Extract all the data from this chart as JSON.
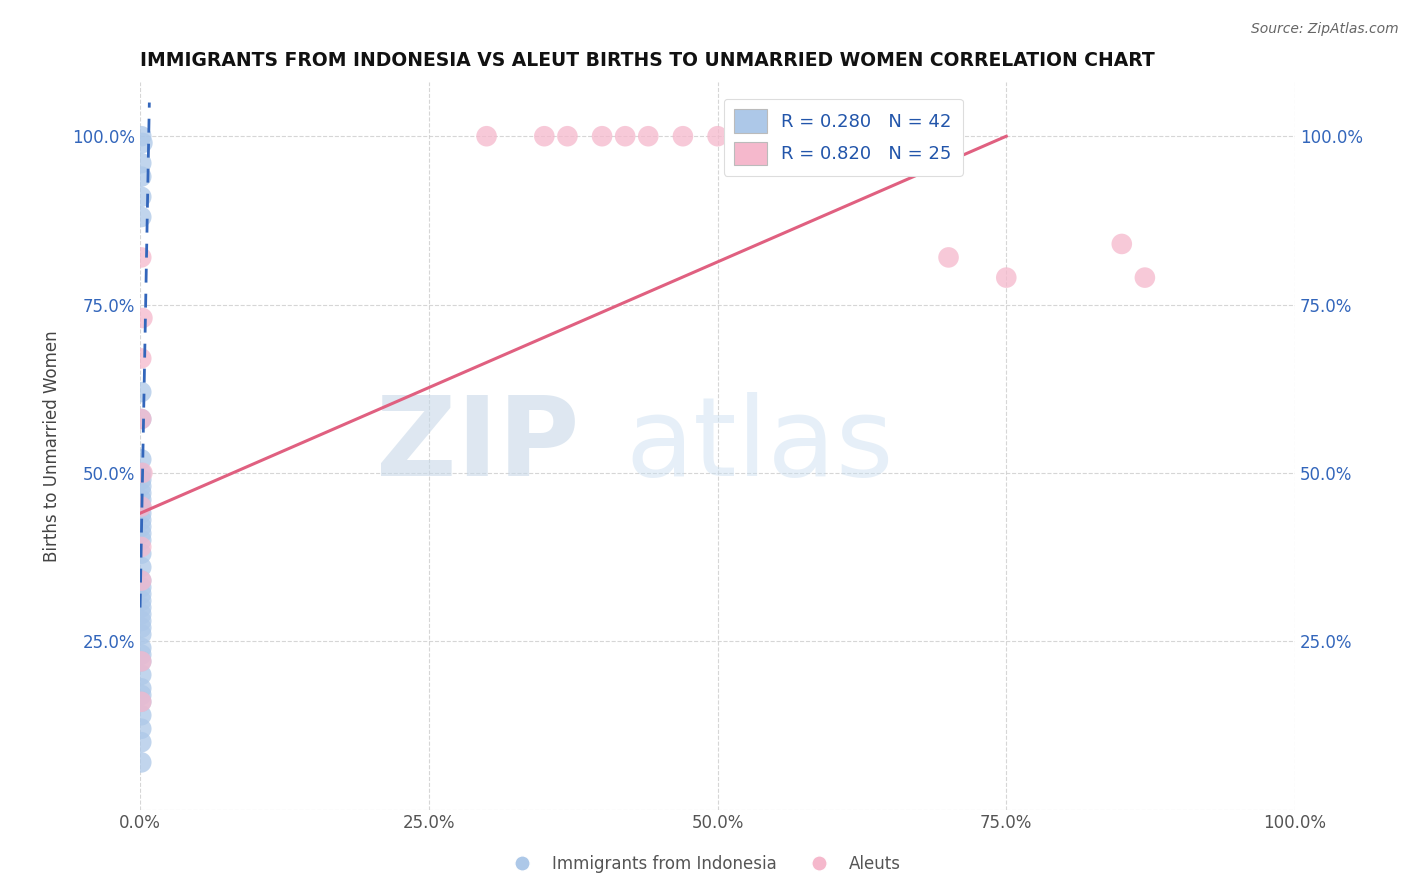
{
  "title": "IMMIGRANTS FROM INDONESIA VS ALEUT BIRTHS TO UNMARRIED WOMEN CORRELATION CHART",
  "source": "Source: ZipAtlas.com",
  "xlabel_bottom": "Immigrants from Indonesia",
  "ylabel": "Births to Unmarried Women",
  "blue_label": "Immigrants from Indonesia",
  "pink_label": "Aleuts",
  "blue_R": 0.28,
  "blue_N": 42,
  "pink_R": 0.82,
  "pink_N": 25,
  "blue_color": "#adc8e8",
  "blue_line_color": "#3366bb",
  "pink_color": "#f5b8cc",
  "pink_line_color": "#e06080",
  "xlim": [
    0.0,
    1.0
  ],
  "ylim": [
    0.0,
    1.08
  ],
  "xticks": [
    0.0,
    0.25,
    0.5,
    0.75,
    1.0
  ],
  "xtick_labels": [
    "0.0%",
    "25.0%",
    "50.0%",
    "75.0%",
    "100.0%"
  ],
  "yticks": [
    0.0,
    0.25,
    0.5,
    0.75,
    1.0
  ],
  "ytick_labels": [
    "",
    "25.0%",
    "50.0%",
    "75.0%",
    "100.0%"
  ],
  "blue_x": [
    0.001,
    0.002,
    0.001,
    0.001,
    0.001,
    0.001,
    0.001,
    0.001,
    0.001,
    0.001,
    0.001,
    0.001,
    0.001,
    0.001,
    0.001,
    0.001,
    0.001,
    0.001,
    0.001,
    0.001,
    0.001,
    0.001,
    0.001,
    0.001,
    0.001,
    0.001,
    0.001,
    0.001,
    0.001,
    0.001,
    0.001,
    0.001,
    0.001,
    0.001,
    0.001,
    0.001,
    0.001,
    0.001,
    0.001,
    0.001,
    0.001,
    0.001
  ],
  "blue_y": [
    1.0,
    0.99,
    0.96,
    0.94,
    0.91,
    0.88,
    0.62,
    0.58,
    0.52,
    0.5,
    0.49,
    0.48,
    0.47,
    0.46,
    0.45,
    0.44,
    0.43,
    0.42,
    0.41,
    0.4,
    0.38,
    0.36,
    0.34,
    0.33,
    0.32,
    0.31,
    0.3,
    0.29,
    0.28,
    0.27,
    0.26,
    0.24,
    0.23,
    0.22,
    0.2,
    0.18,
    0.17,
    0.16,
    0.14,
    0.12,
    0.1,
    0.07
  ],
  "pink_x": [
    0.001,
    0.002,
    0.001,
    0.001,
    0.002,
    0.001,
    0.001,
    0.001,
    0.001,
    0.001,
    0.3,
    0.35,
    0.37,
    0.4,
    0.42,
    0.44,
    0.47,
    0.5,
    0.55,
    0.6,
    0.65,
    0.7,
    0.75,
    0.85,
    0.87
  ],
  "pink_y": [
    0.82,
    0.73,
    0.67,
    0.58,
    0.5,
    0.45,
    0.39,
    0.34,
    0.22,
    0.16,
    1.0,
    1.0,
    1.0,
    1.0,
    1.0,
    1.0,
    1.0,
    1.0,
    1.0,
    1.0,
    0.99,
    0.82,
    0.79,
    0.84,
    0.79
  ],
  "blue_line_x0": 0.0,
  "blue_line_x1": 0.008,
  "blue_line_y0": 0.3,
  "blue_line_y1": 1.05,
  "pink_line_x0": 0.0,
  "pink_line_x1": 0.75,
  "pink_line_y0": 0.44,
  "pink_line_y1": 1.0
}
